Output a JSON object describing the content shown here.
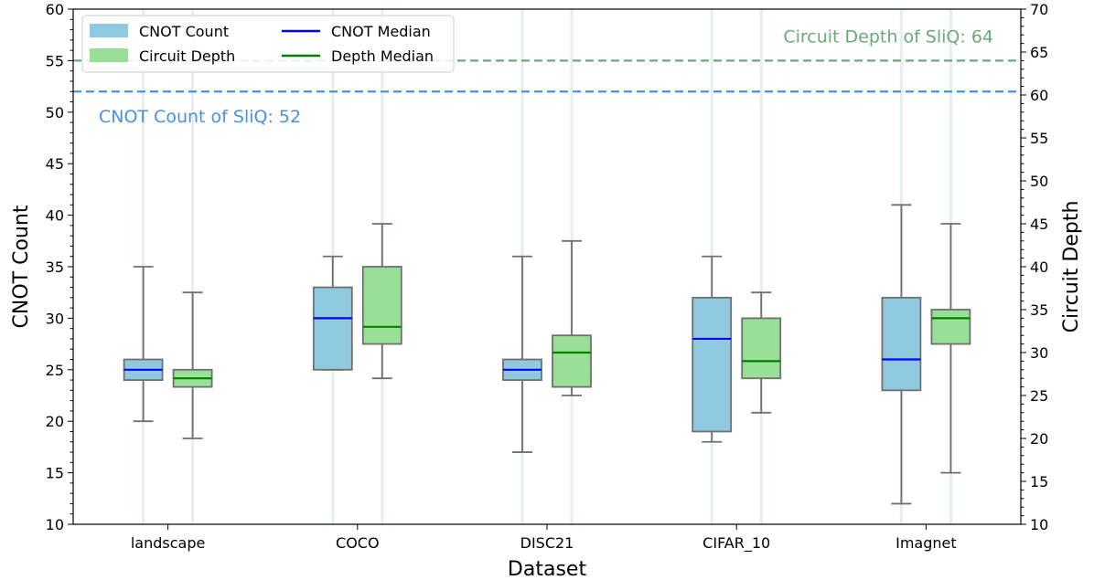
{
  "chart_data": {
    "type": "box",
    "xlabel": "Dataset",
    "ylabel_left": "CNOT Count",
    "ylabel_right": "Circuit Depth",
    "ylim_left": [
      10,
      60
    ],
    "ylim_right": [
      10,
      70
    ],
    "yticks_left": [
      "10",
      "15",
      "20",
      "25",
      "30",
      "35",
      "40",
      "45",
      "50",
      "55",
      "60"
    ],
    "yticks_right": [
      "10",
      "15",
      "20",
      "25",
      "30",
      "35",
      "40",
      "45",
      "50",
      "55",
      "60",
      "65",
      "70"
    ],
    "categories": [
      "landscape",
      "COCO",
      "DISC21",
      "CIFAR_10",
      "Imagnet"
    ],
    "series": [
      {
        "name": "CNOT Count",
        "axis": "left",
        "fill": "#8fc9df",
        "median_color": "#0000ff",
        "boxes": [
          {
            "whisker_low": 20,
            "q1": 24,
            "median": 25,
            "q3": 26,
            "whisker_high": 35
          },
          {
            "whisker_low": 25,
            "q1": 25,
            "median": 30,
            "q3": 33,
            "whisker_high": 36
          },
          {
            "whisker_low": 17,
            "q1": 24,
            "median": 25,
            "q3": 26,
            "whisker_high": 36
          },
          {
            "whisker_low": 18,
            "q1": 19,
            "median": 28,
            "q3": 32,
            "whisker_high": 36
          },
          {
            "whisker_low": 12,
            "q1": 23,
            "median": 26,
            "q3": 32,
            "whisker_high": 41
          }
        ]
      },
      {
        "name": "Circuit Depth",
        "axis": "right",
        "fill": "#98e098",
        "median_color": "#008000",
        "boxes": [
          {
            "whisker_low": 20,
            "q1": 26,
            "median": 27,
            "q3": 28,
            "whisker_high": 37
          },
          {
            "whisker_low": 27,
            "q1": 31,
            "median": 33,
            "q3": 40,
            "whisker_high": 45
          },
          {
            "whisker_low": 25,
            "q1": 26,
            "median": 30,
            "q3": 32,
            "whisker_high": 43
          },
          {
            "whisker_low": 23,
            "q1": 27,
            "median": 29,
            "q3": 34,
            "whisker_high": 37
          },
          {
            "whisker_low": 16,
            "q1": 31,
            "median": 34,
            "q3": 35,
            "whisker_high": 45
          }
        ]
      }
    ],
    "reference_lines": [
      {
        "name": "CNOT Count of SliQ",
        "axis": "left",
        "value": 52,
        "label": "CNOT Count of SliQ: 52",
        "color": "#4a90e2"
      },
      {
        "name": "Circuit Depth of SliQ",
        "axis": "right",
        "value": 64,
        "label": "Circuit Depth of SliQ: 64",
        "color": "#6aaa7a"
      }
    ],
    "legend": {
      "position": "top-left",
      "entries": [
        "CNOT Count",
        "Circuit Depth",
        "CNOT Median",
        "Depth Median"
      ]
    }
  }
}
